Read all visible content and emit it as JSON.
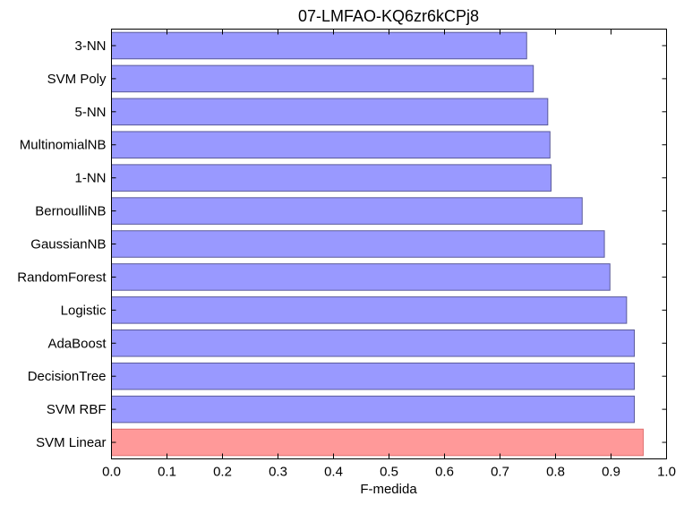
{
  "chart_data": {
    "type": "bar",
    "orientation": "horizontal",
    "title": "07-LMFAO-KQ6zr6kCPj8",
    "xlabel": "F-medida",
    "ylabel": "",
    "xlim": [
      0.0,
      1.0
    ],
    "xticks": [
      "0.0",
      "0.1",
      "0.2",
      "0.3",
      "0.4",
      "0.5",
      "0.6",
      "0.7",
      "0.8",
      "0.9",
      "1.0"
    ],
    "categories": [
      "3-NN",
      "SVM Poly",
      "5-NN",
      "MultinomialNB",
      "1-NN",
      "BernoulliNB",
      "GaussianNB",
      "RandomForest",
      "Logistic",
      "AdaBoost",
      "DecisionTree",
      "SVM RBF",
      "SVM Linear"
    ],
    "values": [
      0.748,
      0.76,
      0.786,
      0.79,
      0.792,
      0.848,
      0.888,
      0.898,
      0.928,
      0.942,
      0.942,
      0.942,
      0.958
    ],
    "highlight": "SVM Linear",
    "colors": {
      "bar": "#9999ff",
      "bar_edge": "#5a5a9a",
      "highlight": "#ff9999",
      "highlight_edge": "#e07070"
    },
    "grid": false,
    "legend": "none"
  }
}
